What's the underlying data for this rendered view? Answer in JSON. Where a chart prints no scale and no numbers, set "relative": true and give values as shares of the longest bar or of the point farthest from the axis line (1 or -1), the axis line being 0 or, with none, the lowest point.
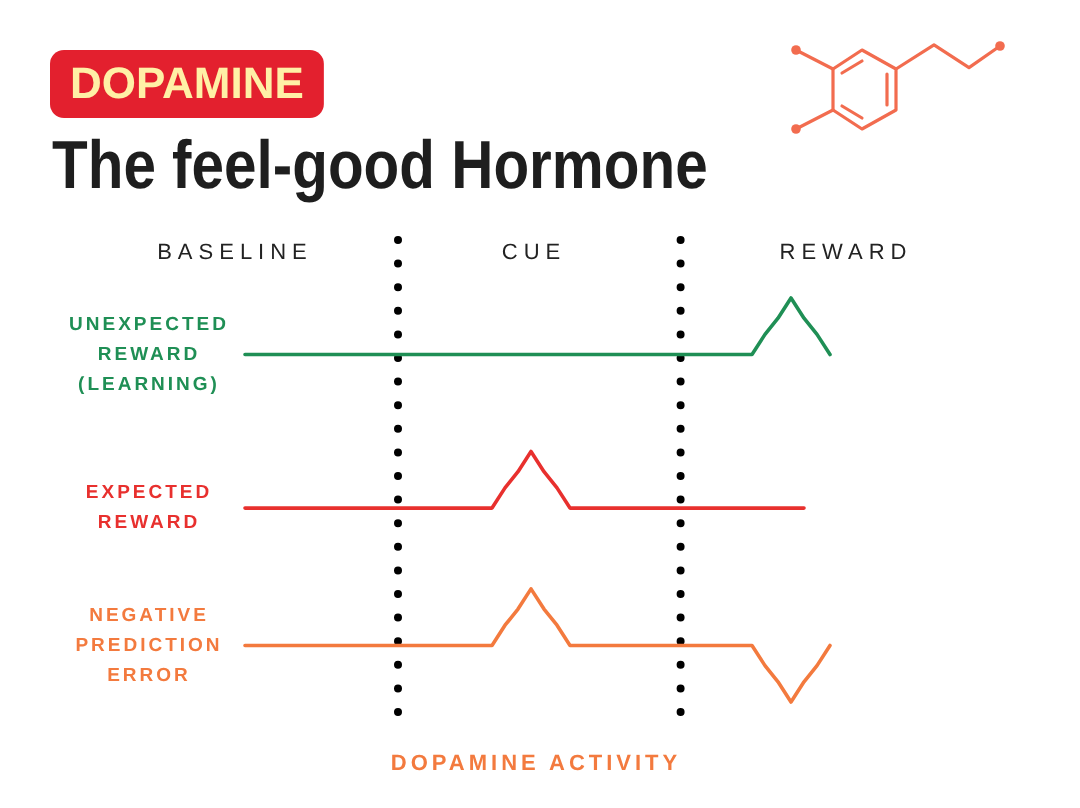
{
  "chart_data": {
    "type": "line",
    "title": "The feel-good Hormone",
    "subtitle": "DOPAMINE",
    "xlabel": "DOPAMINE ACTIVITY",
    "relative": true,
    "categories": [
      "BASELINE",
      null,
      null,
      null,
      null,
      null,
      null,
      null,
      null,
      null,
      null,
      null,
      null,
      null,
      null,
      null,
      null,
      null,
      null,
      null,
      null,
      null,
      null,
      "CUE",
      null,
      null,
      null,
      null,
      null,
      null,
      null,
      null,
      null,
      null,
      null,
      null,
      null,
      null,
      null,
      null,
      null,
      null,
      null,
      null,
      null,
      null,
      null,
      "REWARD"
    ],
    "series": [
      {
        "name": "UNEXPECTED REWARD (LEARNING)",
        "color": "#1f8f55",
        "values": [
          null,
          0.86,
          0.86,
          0.86,
          0.86,
          0.86,
          0.86,
          0.86,
          0.86,
          0.86,
          0.86,
          0.86,
          0.86,
          0.86,
          0.86,
          0.86,
          0.86,
          0.86,
          0.86,
          0.86,
          0.86,
          0.86,
          0.86,
          0.86,
          0.86,
          0.86,
          0.86,
          0.86,
          0.86,
          0.86,
          0.86,
          0.86,
          0.86,
          0.86,
          0.86,
          0.86,
          0.86,
          0.86,
          0.86,
          0.86,
          0.86,
          0.91,
          0.95,
          1,
          0.95,
          0.91,
          0.86,
          null
        ]
      },
      {
        "name": "EXPECTED REWARD",
        "color": "#e8302e",
        "values": [
          null,
          0.48,
          0.48,
          0.48,
          0.48,
          0.48,
          0.48,
          0.48,
          0.48,
          0.48,
          0.48,
          0.48,
          0.48,
          0.48,
          0.48,
          0.48,
          0.48,
          0.48,
          0.48,
          0.48,
          0.48,
          0.53,
          0.57,
          0.62,
          0.57,
          0.53,
          0.48,
          0.48,
          0.48,
          0.48,
          0.48,
          0.48,
          0.48,
          0.48,
          0.48,
          0.48,
          0.48,
          0.48,
          0.48,
          0.48,
          0.48,
          0.48,
          0.48,
          0.48,
          0.48,
          null,
          null,
          null
        ]
      },
      {
        "name": "NEGATIVE PREDICTION ERROR",
        "color": "#f37a3e",
        "values": [
          null,
          0.14,
          0.14,
          0.14,
          0.14,
          0.14,
          0.14,
          0.14,
          0.14,
          0.14,
          0.14,
          0.14,
          0.14,
          0.14,
          0.14,
          0.14,
          0.14,
          0.14,
          0.14,
          0.14,
          0.14,
          0.19,
          0.23,
          0.28,
          0.23,
          0.19,
          0.14,
          0.14,
          0.14,
          0.14,
          0.14,
          0.14,
          0.14,
          0.14,
          0.14,
          0.14,
          0.14,
          0.14,
          0.14,
          0.14,
          0.14,
          0.09,
          0.05,
          0,
          0.05,
          0.09,
          0.14,
          null
        ]
      }
    ],
    "legend": false,
    "marker": "none",
    "line_style": "solid"
  }
}
